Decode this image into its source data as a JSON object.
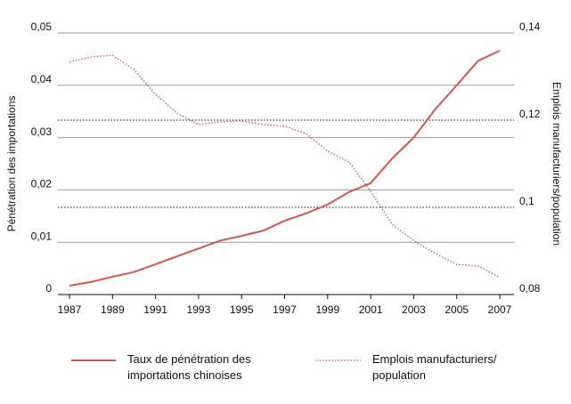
{
  "chart_data": {
    "type": "line",
    "x": [
      1987,
      1988,
      1989,
      1990,
      1991,
      1992,
      1993,
      1994,
      1995,
      1996,
      1997,
      1998,
      1999,
      2000,
      2001,
      2002,
      2003,
      2004,
      2005,
      2006,
      2007
    ],
    "series": [
      {
        "name": "Taux de pénétration des importations chinoises",
        "color": "#d9534f",
        "style": "solid",
        "values": [
          0.0017,
          0.0024,
          0.0034,
          0.0043,
          0.0058,
          0.0073,
          0.0088,
          0.0103,
          0.0112,
          0.0122,
          0.0141,
          0.0155,
          0.0172,
          0.0196,
          0.0213,
          0.026,
          0.03,
          0.0354,
          0.04,
          0.0447,
          0.0466
        ]
      },
      {
        "name": "Emplois manufacturiers/ population",
        "color": "#d9534f",
        "style": "dotted",
        "axis": "y2",
        "values": [
          0.1333,
          0.1345,
          0.1349,
          0.1316,
          0.1259,
          0.1216,
          0.119,
          0.1196,
          0.1198,
          0.119,
          0.1186,
          0.1169,
          0.1129,
          0.1104,
          0.1037,
          0.0961,
          0.0924,
          0.0894,
          0.0869,
          0.0865,
          0.0839
        ]
      }
    ],
    "ylabel": "Pénétration des importations",
    "y2label": "Emplois manufacturiers/population",
    "xlim": [
      1987,
      2007
    ],
    "xticks": [
      1987,
      1989,
      1991,
      1993,
      1995,
      1997,
      1999,
      2001,
      2003,
      2005,
      2007
    ],
    "ylim": [
      0,
      0.05
    ],
    "yticks": [
      0,
      {
        "value": 0.01,
        "label": "0,01"
      },
      {
        "value": 0.02,
        "label": "0,02"
      },
      {
        "value": 0.03,
        "label": "0,03"
      },
      {
        "value": 0.04,
        "label": "0,04"
      },
      {
        "value": 0.05,
        "label": "0,05"
      }
    ],
    "y2lim": [
      0.08,
      0.14
    ],
    "y2ticks": [
      {
        "value": 0.08,
        "label": "0,08"
      },
      {
        "value": 0.1,
        "label": "0,1"
      },
      {
        "value": 0.12,
        "label": "0,12"
      },
      {
        "value": 0.14,
        "label": "0,14"
      }
    ],
    "grid": true
  }
}
